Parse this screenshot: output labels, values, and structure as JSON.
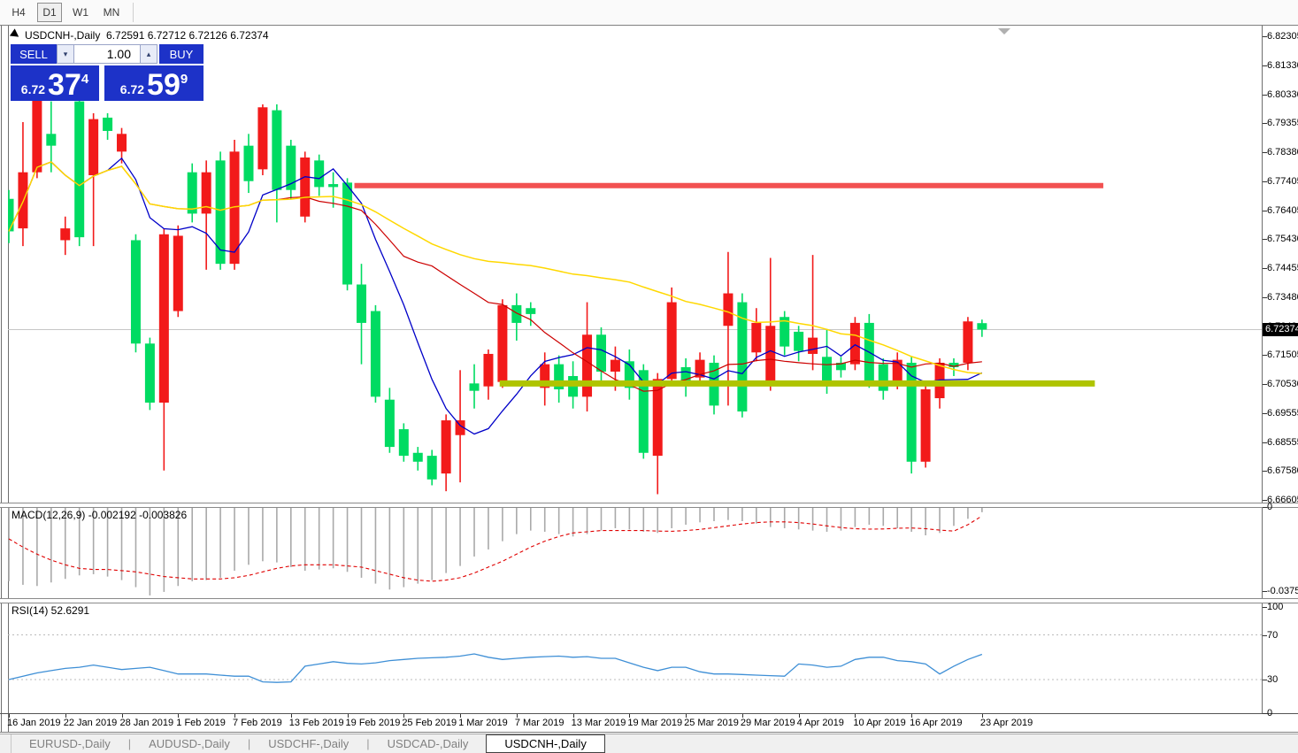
{
  "toolbar": {
    "timeframes": [
      {
        "label": "H4",
        "active": false
      },
      {
        "label": "D1",
        "active": true
      },
      {
        "label": "W1",
        "active": false
      },
      {
        "label": "MN",
        "active": false
      }
    ]
  },
  "chart_header": {
    "symbol_label": "USDCNH-,Daily",
    "open": "6.72591",
    "high": "6.72712",
    "low": "6.72126",
    "close": "6.72374"
  },
  "trade_panel": {
    "sell_label": "SELL",
    "buy_label": "BUY",
    "volume": "1.00",
    "spin_down_icon": "▾",
    "spin_up_icon": "▴",
    "sell_price_small": "6.72",
    "sell_price_big": "37",
    "sell_price_sup": "4",
    "buy_price_small": "6.72",
    "buy_price_big": "59",
    "buy_price_sup": "9"
  },
  "price_axis": {
    "labels": [
      "6.82305",
      "6.81330",
      "6.80330",
      "6.79355",
      "6.78380",
      "6.77405",
      "6.76405",
      "6.75430",
      "6.74455",
      "6.73480",
      "6.72480",
      "6.71505",
      "6.70530",
      "6.69555",
      "6.68555",
      "6.67580",
      "6.66605"
    ],
    "current_price": "6.72374"
  },
  "date_axis": [
    {
      "label": "16 Jan 2019",
      "i": 0
    },
    {
      "label": "22 Jan 2019",
      "i": 4
    },
    {
      "label": "28 Jan 2019",
      "i": 8
    },
    {
      "label": "1 Feb 2019",
      "i": 12
    },
    {
      "label": "7 Feb 2019",
      "i": 16
    },
    {
      "label": "13 Feb 2019",
      "i": 20
    },
    {
      "label": "19 Feb 2019",
      "i": 24
    },
    {
      "label": "25 Feb 2019",
      "i": 28
    },
    {
      "label": "1 Mar 2019",
      "i": 32
    },
    {
      "label": "7 Mar 2019",
      "i": 36
    },
    {
      "label": "13 Mar 2019",
      "i": 40
    },
    {
      "label": "19 Mar 2019",
      "i": 44
    },
    {
      "label": "25 Mar 2019",
      "i": 48
    },
    {
      "label": "29 Mar 2019",
      "i": 52
    },
    {
      "label": "4 Apr 2019",
      "i": 56
    },
    {
      "label": "10 Apr 2019",
      "i": 60
    },
    {
      "label": "16 Apr 2019",
      "i": 64
    },
    {
      "label": "23 Apr 2019",
      "i": 69
    }
  ],
  "tabs": [
    {
      "label": "EURUSD-,Daily",
      "active": false
    },
    {
      "label": "AUDUSD-,Daily",
      "active": false
    },
    {
      "label": "USDCHF-,Daily",
      "active": false
    },
    {
      "label": "USDCAD-,Daily",
      "active": false
    },
    {
      "label": "USDCNH-,Daily",
      "active": true
    }
  ],
  "chart_data": {
    "type": "candlestick",
    "symbol": "USDCNH",
    "timeframe": "Daily",
    "price_range": {
      "top": 6.82305,
      "bottom": 6.66605
    },
    "colors": {
      "bull_body": "#f21a1a",
      "bear_body": "#00db62",
      "ma_fast": "#0000c8",
      "ma_mid": "#cc0000",
      "ma_slow": "#ffd800",
      "resistance": "#f25151",
      "support": "#afc400",
      "current_price_line": "#c6c6c6",
      "macd_hist": "#a9a9a9",
      "macd_signal": "#e00000",
      "rsi_line": "#3e8fd6",
      "rsi_levels": "#bbbbbb"
    },
    "moving_averages": [
      {
        "name": "ma-fast-blue",
        "period": 8
      },
      {
        "name": "ma-mid-red",
        "period": 20
      },
      {
        "name": "ma-slow-yellow",
        "period": 45
      }
    ],
    "resistance_line": {
      "price": 6.7725,
      "start_i": 24.5,
      "end_i": 77.6,
      "thickness": 6
    },
    "support_line": {
      "price": 6.7055,
      "start_i": 34.8,
      "end_i": 77.0,
      "thickness": 7
    },
    "current_price": 6.72374,
    "candles": [
      {
        "d": "16 Jan 2019",
        "o": 6.768,
        "h": 6.771,
        "l": 6.753,
        "c": 6.757
      },
      {
        "d": "17 Jan 2019",
        "o": 6.758,
        "h": 6.794,
        "l": 6.752,
        "c": 6.777
      },
      {
        "d": "18 Jan 2019",
        "o": 6.777,
        "h": 6.805,
        "l": 6.775,
        "c": 6.802
      },
      {
        "d": "21 Jan 2019",
        "o": 6.79,
        "h": 6.801,
        "l": 6.777,
        "c": 6.786
      },
      {
        "d": "22 Jan 2019",
        "o": 6.754,
        "h": 6.762,
        "l": 6.749,
        "c": 6.758
      },
      {
        "d": "23 Jan 2019",
        "o": 6.801,
        "h": 6.803,
        "l": 6.752,
        "c": 6.755
      },
      {
        "d": "24 Jan 2019",
        "o": 6.776,
        "h": 6.797,
        "l": 6.752,
        "c": 6.795
      },
      {
        "d": "25 Jan 2019",
        "o": 6.7955,
        "h": 6.797,
        "l": 6.788,
        "c": 6.791
      },
      {
        "d": "28 Jan 2019",
        "o": 6.784,
        "h": 6.792,
        "l": 6.78,
        "c": 6.79
      },
      {
        "d": "29 Jan 2019",
        "o": 6.754,
        "h": 6.756,
        "l": 6.716,
        "c": 6.719
      },
      {
        "d": "30 Jan 2019",
        "o": 6.719,
        "h": 6.721,
        "l": 6.6965,
        "c": 6.699
      },
      {
        "d": "31 Jan 2019",
        "o": 6.699,
        "h": 6.758,
        "l": 6.676,
        "c": 6.756
      },
      {
        "d": "1 Feb 2019",
        "o": 6.73,
        "h": 6.759,
        "l": 6.728,
        "c": 6.7555
      },
      {
        "d": "4 Feb 2019",
        "o": 6.777,
        "h": 6.78,
        "l": 6.76,
        "c": 6.763
      },
      {
        "d": "5 Feb 2019",
        "o": 6.763,
        "h": 6.781,
        "l": 6.744,
        "c": 6.777
      },
      {
        "d": "6 Feb 2019",
        "o": 6.781,
        "h": 6.784,
        "l": 6.744,
        "c": 6.746
      },
      {
        "d": "7 Feb 2019",
        "o": 6.746,
        "h": 6.788,
        "l": 6.744,
        "c": 6.784
      },
      {
        "d": "8 Feb 2019",
        "o": 6.786,
        "h": 6.79,
        "l": 6.77,
        "c": 6.774
      },
      {
        "d": "11 Feb 2019",
        "o": 6.778,
        "h": 6.8,
        "l": 6.776,
        "c": 6.799
      },
      {
        "d": "12 Feb 2019",
        "o": 6.798,
        "h": 6.8,
        "l": 6.76,
        "c": 6.771
      },
      {
        "d": "13 Feb 2019",
        "o": 6.786,
        "h": 6.788,
        "l": 6.768,
        "c": 6.771
      },
      {
        "d": "14 Feb 2019",
        "o": 6.762,
        "h": 6.784,
        "l": 6.76,
        "c": 6.782
      },
      {
        "d": "15 Feb 2019",
        "o": 6.781,
        "h": 6.783,
        "l": 6.769,
        "c": 6.772
      },
      {
        "d": "18 Feb 2019",
        "o": 6.773,
        "h": 6.777,
        "l": 6.765,
        "c": 6.772
      },
      {
        "d": "19 Feb 2019",
        "o": 6.7735,
        "h": 6.775,
        "l": 6.737,
        "c": 6.739
      },
      {
        "d": "20 Feb 2019",
        "o": 6.739,
        "h": 6.746,
        "l": 6.712,
        "c": 6.726
      },
      {
        "d": "21 Feb 2019",
        "o": 6.73,
        "h": 6.732,
        "l": 6.699,
        "c": 6.701
      },
      {
        "d": "22 Feb 2019",
        "o": 6.7,
        "h": 6.704,
        "l": 6.682,
        "c": 6.684
      },
      {
        "d": "25 Feb 2019",
        "o": 6.69,
        "h": 6.692,
        "l": 6.679,
        "c": 6.681
      },
      {
        "d": "26 Feb 2019",
        "o": 6.682,
        "h": 6.684,
        "l": 6.676,
        "c": 6.679
      },
      {
        "d": "27 Feb 2019",
        "o": 6.681,
        "h": 6.683,
        "l": 6.671,
        "c": 6.673
      },
      {
        "d": "28 Feb 2019",
        "o": 6.675,
        "h": 6.695,
        "l": 6.669,
        "c": 6.693
      },
      {
        "d": "1 Mar 2019",
        "o": 6.688,
        "h": 6.71,
        "l": 6.672,
        "c": 6.693
      },
      {
        "d": "4 Mar 2019",
        "o": 6.7055,
        "h": 6.712,
        "l": 6.697,
        "c": 6.703
      },
      {
        "d": "5 Mar 2019",
        "o": 6.7045,
        "h": 6.717,
        "l": 6.7,
        "c": 6.7155
      },
      {
        "d": "6 Mar 2019",
        "o": 6.706,
        "h": 6.734,
        "l": 6.704,
        "c": 6.732
      },
      {
        "d": "7 Mar 2019",
        "o": 6.732,
        "h": 6.736,
        "l": 6.72,
        "c": 6.726
      },
      {
        "d": "8 Mar 2019",
        "o": 6.731,
        "h": 6.733,
        "l": 6.725,
        "c": 6.729
      },
      {
        "d": "11 Mar 2019",
        "o": 6.704,
        "h": 6.716,
        "l": 6.698,
        "c": 6.712
      },
      {
        "d": "12 Mar 2019",
        "o": 6.712,
        "h": 6.715,
        "l": 6.699,
        "c": 6.7035
      },
      {
        "d": "13 Mar 2019",
        "o": 6.708,
        "h": 6.713,
        "l": 6.697,
        "c": 6.701
      },
      {
        "d": "14 Mar 2019",
        "o": 6.701,
        "h": 6.733,
        "l": 6.696,
        "c": 6.722
      },
      {
        "d": "15 Mar 2019",
        "o": 6.722,
        "h": 6.7245,
        "l": 6.7055,
        "c": 6.7095
      },
      {
        "d": "18 Mar 2019",
        "o": 6.7095,
        "h": 6.718,
        "l": 6.703,
        "c": 6.7135
      },
      {
        "d": "19 Mar 2019",
        "o": 6.713,
        "h": 6.717,
        "l": 6.7,
        "c": 6.704
      },
      {
        "d": "20 Mar 2019",
        "o": 6.71,
        "h": 6.712,
        "l": 6.68,
        "c": 6.682
      },
      {
        "d": "21 Mar 2019",
        "o": 6.681,
        "h": 6.709,
        "l": 6.668,
        "c": 6.707
      },
      {
        "d": "22 Mar 2019",
        "o": 6.707,
        "h": 6.738,
        "l": 6.705,
        "c": 6.733
      },
      {
        "d": "25 Mar 2019",
        "o": 6.711,
        "h": 6.714,
        "l": 6.701,
        "c": 6.705
      },
      {
        "d": "26 Mar 2019",
        "o": 6.7075,
        "h": 6.716,
        "l": 6.705,
        "c": 6.7135
      },
      {
        "d": "27 Mar 2019",
        "o": 6.7125,
        "h": 6.715,
        "l": 6.695,
        "c": 6.698
      },
      {
        "d": "28 Mar 2019",
        "o": 6.725,
        "h": 6.75,
        "l": 6.698,
        "c": 6.736
      },
      {
        "d": "29 Mar 2019",
        "o": 6.733,
        "h": 6.736,
        "l": 6.694,
        "c": 6.696
      },
      {
        "d": "1 Apr 2019",
        "o": 6.716,
        "h": 6.731,
        "l": 6.713,
        "c": 6.726
      },
      {
        "d": "2 Apr 2019",
        "o": 6.706,
        "h": 6.748,
        "l": 6.703,
        "c": 6.725
      },
      {
        "d": "3 Apr 2019",
        "o": 6.728,
        "h": 6.73,
        "l": 6.715,
        "c": 6.718
      },
      {
        "d": "4 Apr 2019",
        "o": 6.723,
        "h": 6.725,
        "l": 6.713,
        "c": 6.7165
      },
      {
        "d": "5 Apr 2019",
        "o": 6.7155,
        "h": 6.749,
        "l": 6.71,
        "c": 6.721
      },
      {
        "d": "8 Apr 2019",
        "o": 6.7145,
        "h": 6.724,
        "l": 6.702,
        "c": 6.706
      },
      {
        "d": "9 Apr 2019",
        "o": 6.7125,
        "h": 6.7145,
        "l": 6.7075,
        "c": 6.71
      },
      {
        "d": "10 Apr 2019",
        "o": 6.712,
        "h": 6.728,
        "l": 6.71,
        "c": 6.726
      },
      {
        "d": "11 Apr 2019",
        "o": 6.726,
        "h": 6.729,
        "l": 6.704,
        "c": 6.706
      },
      {
        "d": "12 Apr 2019",
        "o": 6.712,
        "h": 6.714,
        "l": 6.7,
        "c": 6.703
      },
      {
        "d": "15 Apr 2019",
        "o": 6.705,
        "h": 6.716,
        "l": 6.7035,
        "c": 6.7135
      },
      {
        "d": "16 Apr 2019",
        "o": 6.7125,
        "h": 6.7145,
        "l": 6.675,
        "c": 6.679
      },
      {
        "d": "17 Apr 2019",
        "o": 6.679,
        "h": 6.706,
        "l": 6.677,
        "c": 6.7035
      },
      {
        "d": "18 Apr 2019",
        "o": 6.7005,
        "h": 6.714,
        "l": 6.697,
        "c": 6.7125
      },
      {
        "d": "19 Apr 2019",
        "o": 6.7125,
        "h": 6.714,
        "l": 6.708,
        "c": 6.711
      },
      {
        "d": "22 Apr 2019",
        "o": 6.7125,
        "h": 6.728,
        "l": 6.71,
        "c": 6.7265
      },
      {
        "d": "23 Apr 2019",
        "o": 6.72591,
        "h": 6.72712,
        "l": 6.72126,
        "c": 6.72374
      }
    ],
    "macd": {
      "label": "MACD(12,26,9) -0.002192 -0.003826",
      "axis_max": "0",
      "axis_min": "-0.037529",
      "hist": [
        -0.0315,
        -0.033,
        -0.0335,
        -0.032,
        -0.0305,
        -0.029,
        -0.0285,
        -0.0295,
        -0.031,
        -0.034,
        -0.0375,
        -0.036,
        -0.0335,
        -0.0315,
        -0.031,
        -0.03,
        -0.027,
        -0.0245,
        -0.023,
        -0.0235,
        -0.0255,
        -0.027,
        -0.0265,
        -0.026,
        -0.0275,
        -0.03,
        -0.0325,
        -0.035,
        -0.034,
        -0.0325,
        -0.031,
        -0.028,
        -0.025,
        -0.021,
        -0.018,
        -0.0145,
        -0.0115,
        -0.01,
        -0.0105,
        -0.0115,
        -0.0125,
        -0.0115,
        -0.01,
        -0.009,
        -0.0095,
        -0.0105,
        -0.011,
        -0.009,
        -0.0075,
        -0.0065,
        -0.006,
        -0.0055,
        -0.006,
        -0.007,
        -0.0085,
        -0.009,
        -0.0095,
        -0.01,
        -0.0105,
        -0.01,
        -0.0085,
        -0.0075,
        -0.008,
        -0.009,
        -0.0105,
        -0.012,
        -0.011,
        -0.008,
        -0.005,
        -0.0022
      ],
      "signal": [
        -0.0135,
        -0.017,
        -0.02,
        -0.0225,
        -0.0245,
        -0.026,
        -0.0265,
        -0.0265,
        -0.027,
        -0.0275,
        -0.0285,
        -0.0295,
        -0.03,
        -0.0305,
        -0.0305,
        -0.0305,
        -0.03,
        -0.029,
        -0.0275,
        -0.026,
        -0.025,
        -0.0245,
        -0.0245,
        -0.0245,
        -0.025,
        -0.0255,
        -0.027,
        -0.0285,
        -0.03,
        -0.031,
        -0.0315,
        -0.031,
        -0.03,
        -0.028,
        -0.0255,
        -0.023,
        -0.02,
        -0.017,
        -0.0145,
        -0.0125,
        -0.011,
        -0.0105,
        -0.01,
        -0.01,
        -0.01,
        -0.01,
        -0.0102,
        -0.0103,
        -0.01,
        -0.0095,
        -0.0088,
        -0.008,
        -0.0072,
        -0.0066,
        -0.0063,
        -0.0063,
        -0.0066,
        -0.0072,
        -0.008,
        -0.0087,
        -0.0092,
        -0.0094,
        -0.0093,
        -0.009,
        -0.0089,
        -0.0092,
        -0.0098,
        -0.0102,
        -0.0075,
        -0.0038
      ]
    },
    "rsi": {
      "label": "RSI(14) 52.6291",
      "axis_labels": [
        100,
        70,
        30,
        0
      ],
      "levels": [
        70,
        30
      ],
      "values": [
        30,
        33,
        36,
        38,
        40,
        41,
        43,
        41,
        39,
        40,
        41,
        38,
        35,
        35,
        35,
        34,
        33,
        33,
        28,
        27.5,
        28,
        42,
        44,
        46,
        44.5,
        44,
        45,
        47,
        48,
        49,
        49.5,
        50,
        51,
        53,
        50,
        48,
        49,
        50,
        50.5,
        51,
        50,
        50.5,
        49,
        49,
        45,
        41,
        38,
        41,
        41,
        37,
        35,
        35,
        34.5,
        34,
        33.5,
        33,
        44,
        43,
        41,
        42,
        48,
        50,
        50,
        47,
        46,
        44,
        35,
        42,
        48,
        52.6
      ]
    }
  }
}
